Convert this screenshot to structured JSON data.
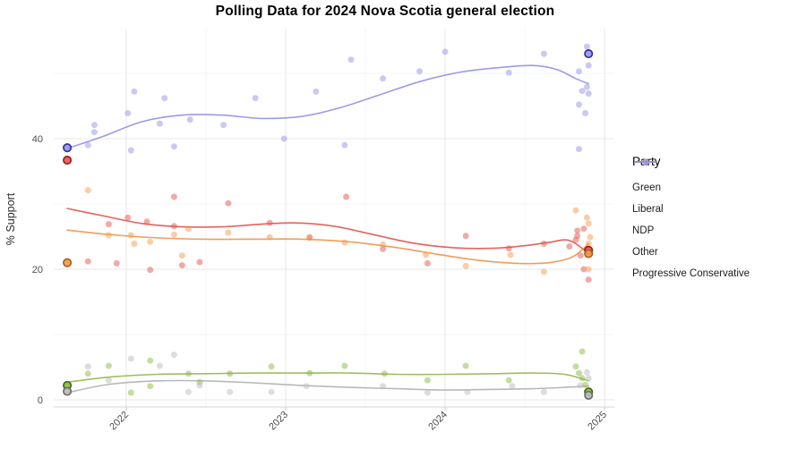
{
  "chart_data": {
    "type": "scatter",
    "title": "Polling Data for 2024 Nova Scotia general election",
    "xlabel": "",
    "ylabel": "% Support",
    "legend_title": "Party",
    "legend_position": "right",
    "grid": "on",
    "x_ticks": [
      2022,
      2023,
      2024,
      2025
    ],
    "x_minor_ticks": [
      2021.5,
      2022.5,
      2023.5,
      2024.5
    ],
    "xlim": [
      2021.55,
      2025.06
    ],
    "y_ticks": [
      0,
      20,
      40
    ],
    "y_gridlines": [
      0,
      10,
      20,
      30,
      40,
      50
    ],
    "ylim": [
      -1.1,
      56.8
    ],
    "colors": {
      "grid_major": "#e9e9e9",
      "grid_minor": "#f4f4f4",
      "axis_line": "#d6d6d6",
      "tick_mark": "#c9c9c9",
      "tick_label": "#4d4d4d"
    },
    "series": [
      {
        "name": "Green",
        "color": "#8db843",
        "line_color": "#8cb43e",
        "ring_color": "#3f6d12",
        "points": [
          [
            2021.76,
            4.0
          ],
          [
            2021.89,
            5.2
          ],
          [
            2022.03,
            1.1
          ],
          [
            2022.15,
            6.0
          ],
          [
            2022.15,
            2.1
          ],
          [
            2022.39,
            4.0
          ],
          [
            2022.46,
            2.7
          ],
          [
            2022.65,
            4.0
          ],
          [
            2022.91,
            5.1
          ],
          [
            2023.15,
            4.1
          ],
          [
            2023.37,
            5.2
          ],
          [
            2023.62,
            4.0
          ],
          [
            2023.89,
            3.0
          ],
          [
            2024.13,
            5.2
          ],
          [
            2024.4,
            3.0
          ],
          [
            2024.82,
            5.1
          ],
          [
            2024.84,
            4.1
          ],
          [
            2024.86,
            7.4
          ],
          [
            2024.86,
            3.3
          ],
          [
            2024.88,
            2.3
          ]
        ],
        "election_points": [
          [
            2021.63,
            2.2
          ],
          [
            2024.9,
            1.2
          ]
        ],
        "trend": [
          [
            2021.63,
            2.7
          ],
          [
            2021.9,
            3.5
          ],
          [
            2022.2,
            3.9
          ],
          [
            2022.5,
            4.0
          ],
          [
            2022.8,
            4.1
          ],
          [
            2023.1,
            4.1
          ],
          [
            2023.4,
            4.1
          ],
          [
            2023.7,
            3.9
          ],
          [
            2024.0,
            3.9
          ],
          [
            2024.3,
            4.0
          ],
          [
            2024.55,
            4.1
          ],
          [
            2024.75,
            3.9
          ],
          [
            2024.9,
            2.9
          ]
        ]
      },
      {
        "name": "Liberal",
        "color": "#e4554d",
        "line_color": "#e0473f",
        "ring_color": "#9e1c1c",
        "points": [
          [
            2021.76,
            21.2
          ],
          [
            2021.89,
            26.9
          ],
          [
            2021.94,
            20.9
          ],
          [
            2022.01,
            27.9
          ],
          [
            2022.13,
            27.3
          ],
          [
            2022.15,
            19.9
          ],
          [
            2022.3,
            31.1
          ],
          [
            2022.3,
            26.6
          ],
          [
            2022.35,
            20.6
          ],
          [
            2022.46,
            21.1
          ],
          [
            2022.64,
            30.1
          ],
          [
            2022.9,
            27.1
          ],
          [
            2023.15,
            24.9
          ],
          [
            2023.38,
            31.1
          ],
          [
            2023.61,
            23.1
          ],
          [
            2023.89,
            20.9
          ],
          [
            2024.13,
            25.1
          ],
          [
            2024.4,
            23.2
          ],
          [
            2024.62,
            23.9
          ],
          [
            2024.78,
            23.5
          ],
          [
            2024.82,
            24.5
          ],
          [
            2024.83,
            25.9
          ],
          [
            2024.83,
            25.1
          ],
          [
            2024.85,
            22.1
          ],
          [
            2024.87,
            26.2
          ],
          [
            2024.87,
            20.0
          ],
          [
            2024.9,
            18.4
          ]
        ],
        "election_points": [
          [
            2021.63,
            36.7
          ],
          [
            2024.9,
            22.9
          ]
        ],
        "trend": [
          [
            2021.63,
            29.3
          ],
          [
            2021.85,
            28.2
          ],
          [
            2022.1,
            27.0
          ],
          [
            2022.35,
            26.5
          ],
          [
            2022.6,
            26.5
          ],
          [
            2022.85,
            26.9
          ],
          [
            2023.05,
            27.1
          ],
          [
            2023.3,
            26.6
          ],
          [
            2023.55,
            25.3
          ],
          [
            2023.8,
            24.0
          ],
          [
            2024.05,
            23.3
          ],
          [
            2024.3,
            23.2
          ],
          [
            2024.5,
            23.6
          ],
          [
            2024.65,
            24.1
          ],
          [
            2024.78,
            24.4
          ],
          [
            2024.9,
            22.4
          ]
        ]
      },
      {
        "name": "NDP",
        "color": "#f39b50",
        "line_color": "#f08c3a",
        "ring_color": "#b05e10",
        "points": [
          [
            2021.76,
            32.1
          ],
          [
            2021.89,
            25.2
          ],
          [
            2022.03,
            25.2
          ],
          [
            2022.05,
            23.9
          ],
          [
            2022.15,
            24.2
          ],
          [
            2022.3,
            25.3
          ],
          [
            2022.35,
            22.1
          ],
          [
            2022.39,
            26.2
          ],
          [
            2022.64,
            25.6
          ],
          [
            2022.9,
            24.9
          ],
          [
            2023.15,
            24.8
          ],
          [
            2023.37,
            24.1
          ],
          [
            2023.61,
            23.8
          ],
          [
            2023.88,
            22.2
          ],
          [
            2024.13,
            20.5
          ],
          [
            2024.41,
            22.2
          ],
          [
            2024.62,
            19.6
          ],
          [
            2024.82,
            29.0
          ],
          [
            2024.89,
            27.9
          ],
          [
            2024.9,
            27.0
          ],
          [
            2024.91,
            24.9
          ],
          [
            2024.9,
            23.9
          ],
          [
            2024.9,
            20.0
          ]
        ],
        "election_points": [
          [
            2021.63,
            21.0
          ],
          [
            2024.9,
            22.4
          ]
        ],
        "trend": [
          [
            2021.63,
            26.0
          ],
          [
            2021.9,
            25.3
          ],
          [
            2022.2,
            24.8
          ],
          [
            2022.5,
            24.6
          ],
          [
            2022.8,
            24.6
          ],
          [
            2023.1,
            24.6
          ],
          [
            2023.4,
            24.2
          ],
          [
            2023.7,
            23.3
          ],
          [
            2023.95,
            22.3
          ],
          [
            2024.2,
            21.4
          ],
          [
            2024.45,
            20.9
          ],
          [
            2024.65,
            21.0
          ],
          [
            2024.8,
            21.9
          ],
          [
            2024.9,
            23.9
          ]
        ]
      },
      {
        "name": "Other",
        "color": "#bcbcbc",
        "line_color": "#ababab",
        "ring_color": "#6e6e6e",
        "points": [
          [
            2021.76,
            5.1
          ],
          [
            2021.89,
            3.0
          ],
          [
            2022.03,
            6.3
          ],
          [
            2022.21,
            5.2
          ],
          [
            2022.3,
            6.9
          ],
          [
            2022.39,
            1.2
          ],
          [
            2022.46,
            2.2
          ],
          [
            2022.65,
            1.2
          ],
          [
            2022.91,
            1.2
          ],
          [
            2023.13,
            2.1
          ],
          [
            2023.61,
            2.1
          ],
          [
            2023.89,
            1.1
          ],
          [
            2024.14,
            1.2
          ],
          [
            2024.42,
            2.1
          ],
          [
            2024.62,
            1.2
          ],
          [
            2024.85,
            2.2
          ],
          [
            2024.89,
            4.2
          ],
          [
            2024.9,
            3.3
          ]
        ],
        "election_points": [
          [
            2021.63,
            1.3
          ],
          [
            2024.9,
            0.7
          ]
        ],
        "trend": [
          [
            2021.63,
            1.1
          ],
          [
            2021.9,
            2.4
          ],
          [
            2022.2,
            2.9
          ],
          [
            2022.5,
            2.9
          ],
          [
            2022.8,
            2.6
          ],
          [
            2023.1,
            2.2
          ],
          [
            2023.4,
            1.9
          ],
          [
            2023.7,
            1.7
          ],
          [
            2024.0,
            1.5
          ],
          [
            2024.3,
            1.6
          ],
          [
            2024.55,
            1.7
          ],
          [
            2024.75,
            1.9
          ],
          [
            2024.9,
            2.1
          ]
        ]
      },
      {
        "name": "Progressive  Conservative",
        "color": "#9593ea",
        "line_color": "#8a88e8",
        "ring_color": "#32329b",
        "points": [
          [
            2021.76,
            39.0
          ],
          [
            2021.8,
            42.1
          ],
          [
            2021.8,
            41.0
          ],
          [
            2022.01,
            43.9
          ],
          [
            2022.03,
            38.2
          ],
          [
            2022.05,
            47.2
          ],
          [
            2022.21,
            42.3
          ],
          [
            2022.24,
            46.2
          ],
          [
            2022.3,
            38.8
          ],
          [
            2022.4,
            42.9
          ],
          [
            2022.61,
            42.1
          ],
          [
            2022.81,
            46.2
          ],
          [
            2022.99,
            40.0
          ],
          [
            2023.19,
            47.2
          ],
          [
            2023.37,
            39.0
          ],
          [
            2023.41,
            52.1
          ],
          [
            2023.61,
            49.2
          ],
          [
            2023.84,
            50.3
          ],
          [
            2024.0,
            53.3
          ],
          [
            2024.4,
            50.1
          ],
          [
            2024.62,
            53.0
          ],
          [
            2024.84,
            38.4
          ],
          [
            2024.84,
            50.3
          ],
          [
            2024.84,
            45.2
          ],
          [
            2024.86,
            47.3
          ],
          [
            2024.88,
            43.9
          ],
          [
            2024.89,
            54.1
          ],
          [
            2024.89,
            47.9
          ],
          [
            2024.9,
            51.2
          ],
          [
            2024.9,
            46.9
          ]
        ],
        "election_points": [
          [
            2021.63,
            38.6
          ],
          [
            2024.9,
            53.0
          ]
        ],
        "trend": [
          [
            2021.63,
            38.5
          ],
          [
            2021.85,
            40.3
          ],
          [
            2022.1,
            42.6
          ],
          [
            2022.35,
            43.6
          ],
          [
            2022.6,
            43.6
          ],
          [
            2022.85,
            43.1
          ],
          [
            2023.1,
            43.4
          ],
          [
            2023.35,
            44.8
          ],
          [
            2023.6,
            46.8
          ],
          [
            2023.85,
            48.8
          ],
          [
            2024.1,
            50.2
          ],
          [
            2024.35,
            50.9
          ],
          [
            2024.55,
            51.2
          ],
          [
            2024.7,
            50.6
          ],
          [
            2024.82,
            49.2
          ],
          [
            2024.9,
            48.4
          ]
        ]
      }
    ]
  }
}
